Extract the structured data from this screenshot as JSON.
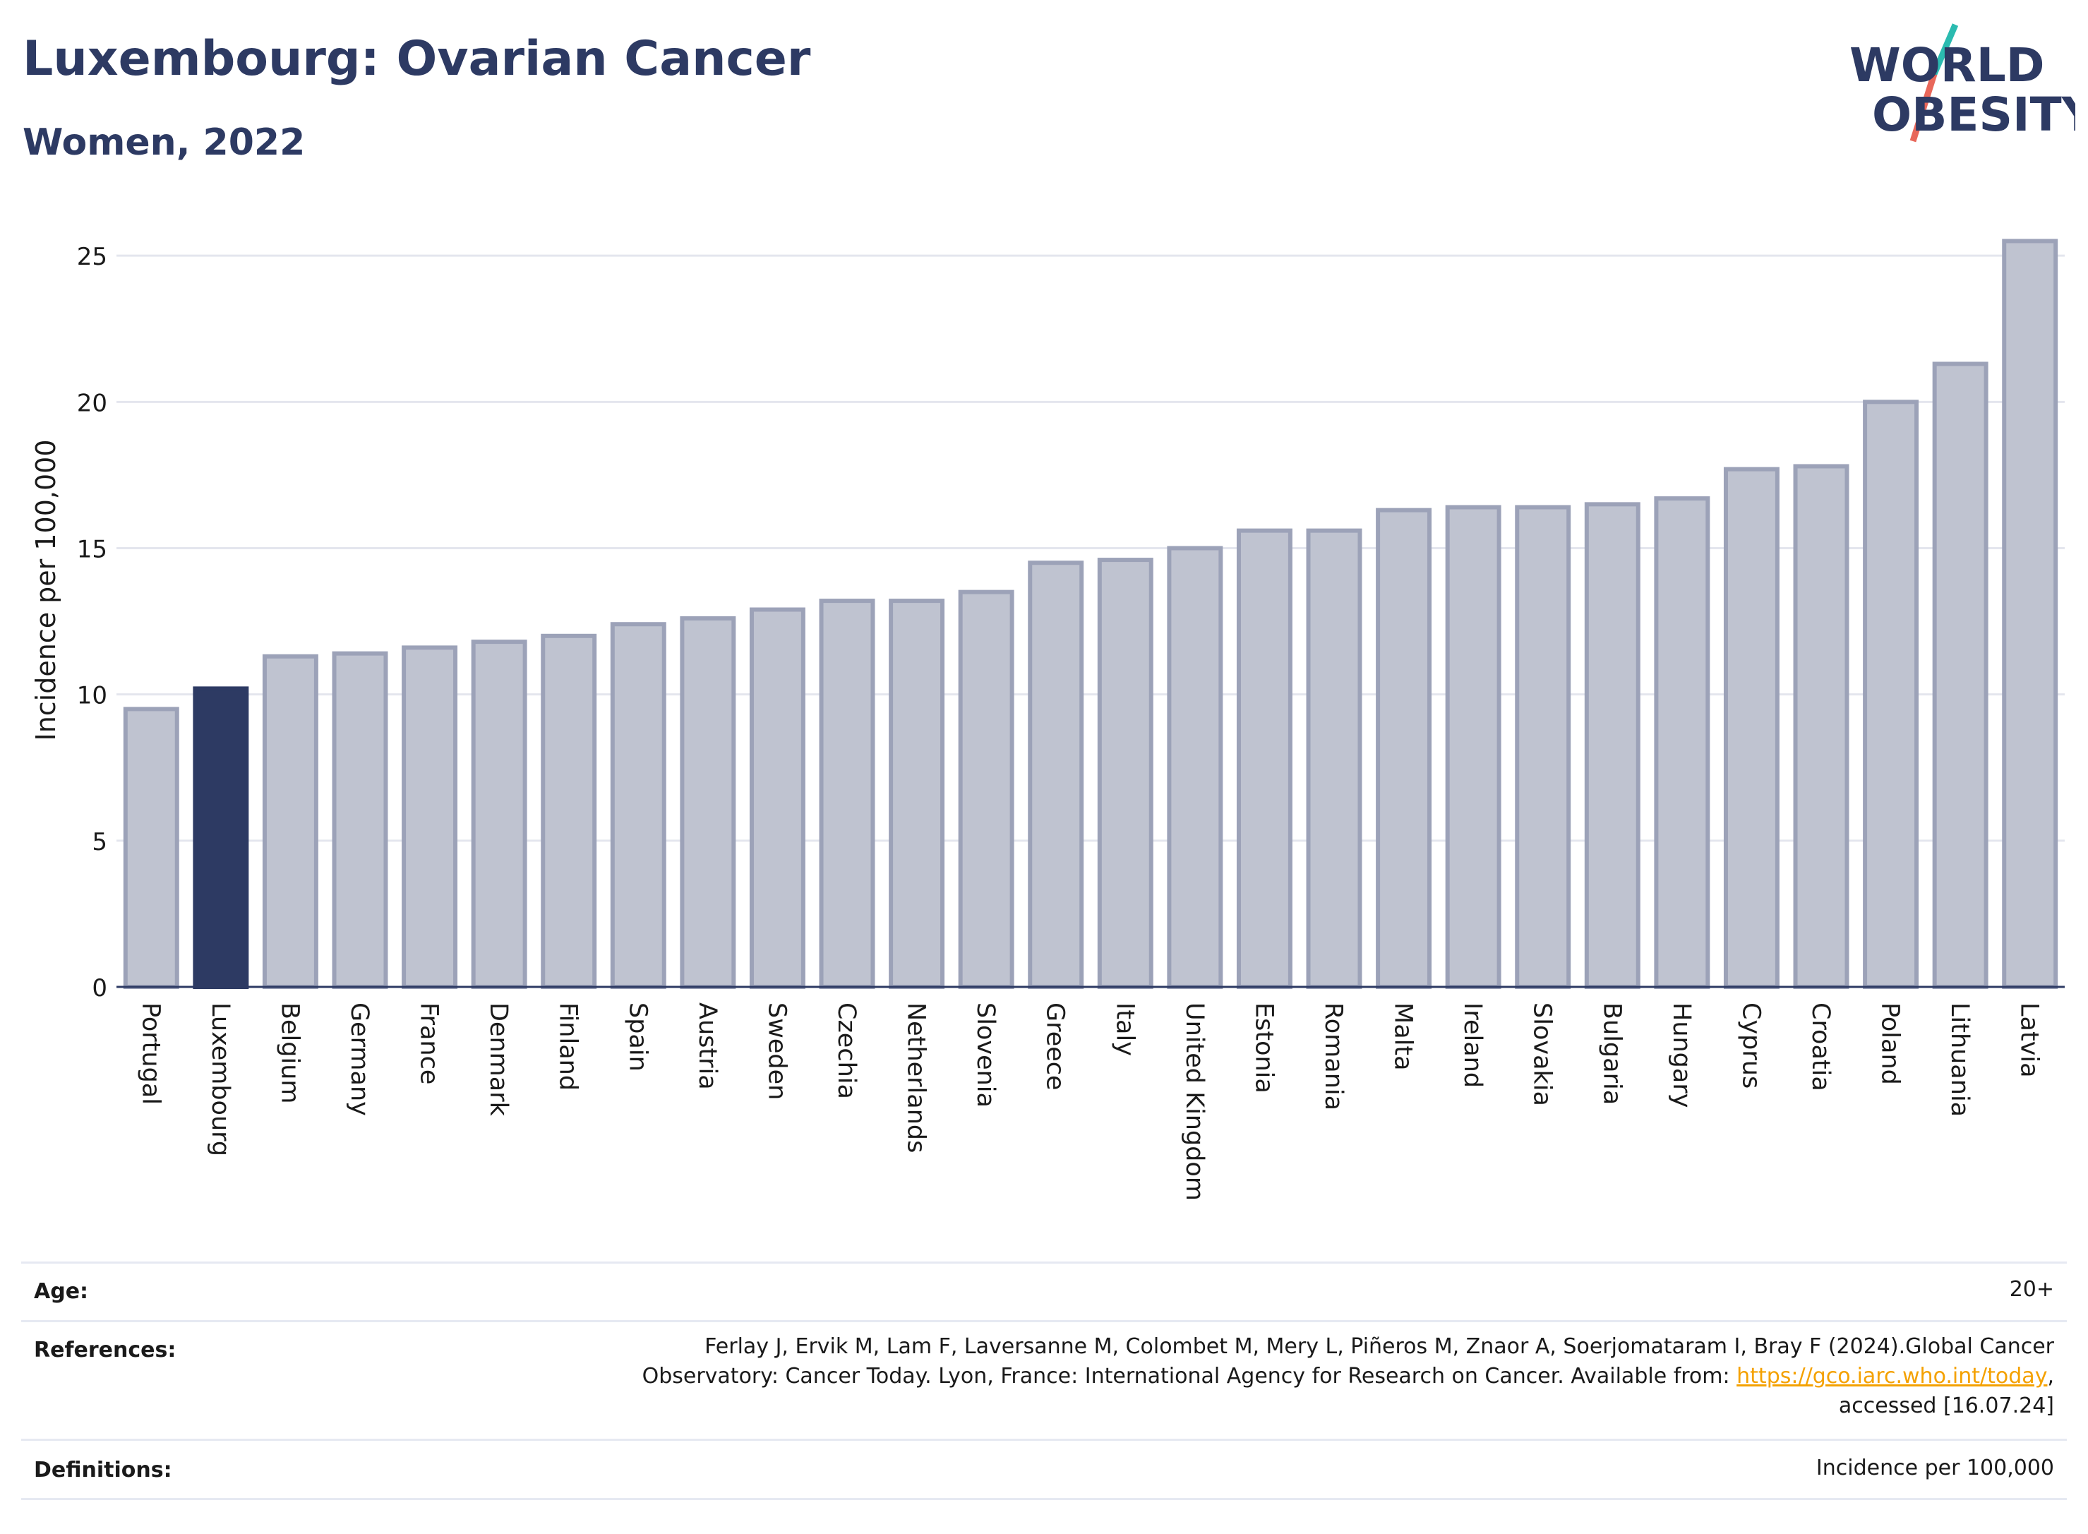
{
  "header": {
    "title": "Luxembourg: Ovarian Cancer",
    "subtitle": "Women, 2022"
  },
  "logo": {
    "line1": "WORLD",
    "line2": "OBESITY",
    "colors": {
      "text": "#2d3a63",
      "slash_top": "#2bbbb0",
      "slash_bottom": "#e8675a"
    }
  },
  "chart_data": {
    "type": "bar",
    "title": "Luxembourg: Ovarian Cancer",
    "subtitle": "Women, 2022",
    "ylabel": "Incidence per 100,000",
    "xlabel": "",
    "ylim": [
      0,
      26.5
    ],
    "yticks": [
      0,
      5,
      10,
      15,
      20,
      25
    ],
    "grid": true,
    "highlight": "Luxembourg",
    "colors": {
      "default": "#bfc3d0",
      "default_border": "#9ca2b8",
      "highlight": "#2d3a63"
    },
    "categories": [
      "Portugal",
      "Luxembourg",
      "Belgium",
      "Germany",
      "France",
      "Denmark",
      "Finland",
      "Spain",
      "Austria",
      "Sweden",
      "Czechia",
      "Netherlands",
      "Slovenia",
      "Greece",
      "Italy",
      "United Kingdom",
      "Estonia",
      "Romania",
      "Malta",
      "Ireland",
      "Slovakia",
      "Bulgaria",
      "Hungary",
      "Cyprus",
      "Croatia",
      "Poland",
      "Lithuania",
      "Latvia"
    ],
    "values": [
      9.5,
      10.2,
      11.3,
      11.4,
      11.6,
      11.8,
      12.0,
      12.4,
      12.6,
      12.9,
      13.2,
      13.2,
      13.5,
      14.5,
      14.6,
      15.0,
      15.6,
      15.6,
      16.3,
      16.4,
      16.4,
      16.5,
      16.7,
      17.7,
      17.8,
      20.0,
      21.3,
      25.5
    ]
  },
  "info": {
    "age_label": "Age:",
    "age_value": "20+",
    "references_label": "References:",
    "references_line1": "Ferlay J, Ervik M, Lam F, Laversanne M, Colombet M, Mery L, Piñeros M, Znaor A, Soerjomataram I, Bray F (2024).Global Cancer",
    "references_line2_pre": "Observatory: Cancer Today. Lyon, France: International Agency for Research on Cancer. Available from: ",
    "references_link": "https://gco.iarc.who.int/today",
    "references_line2_post": ",",
    "references_line3": "accessed [16.07.24]",
    "definitions_label": "Definitions:",
    "definitions_value": "Incidence per 100,000"
  }
}
